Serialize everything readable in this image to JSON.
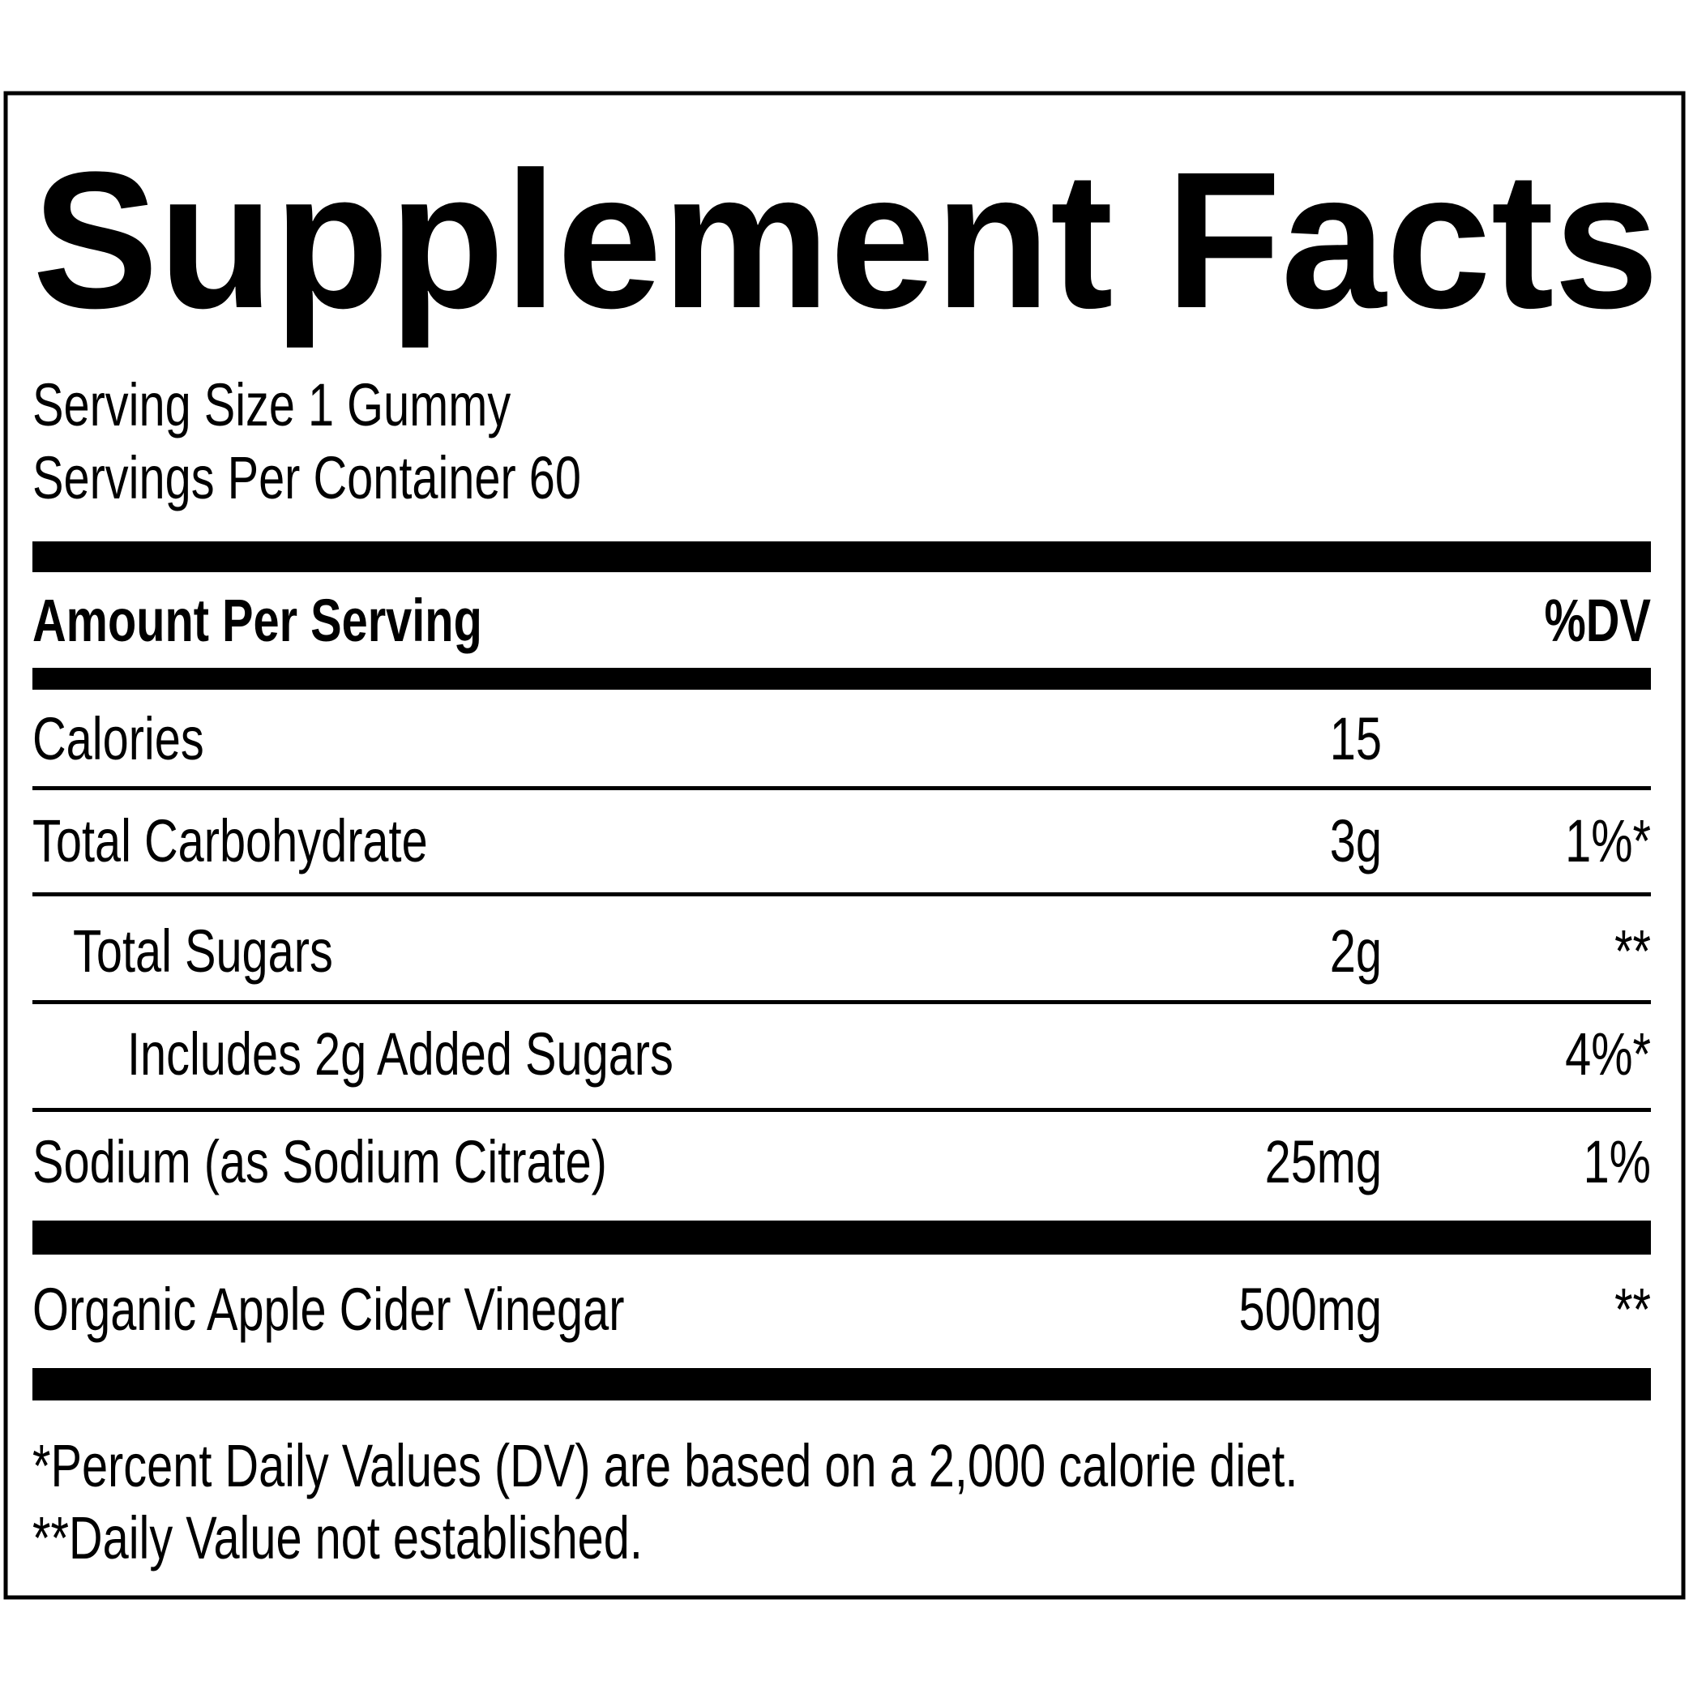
{
  "header": {
    "title": "Supplement Facts",
    "serving_size": "Serving Size 1 Gummy",
    "servings_per_container": "Servings Per Container 60"
  },
  "table": {
    "header": {
      "label": "Amount Per Serving",
      "dv": "%DV"
    },
    "rows": [
      {
        "name": "Calories",
        "amount": "15"
      },
      {
        "name": "Total Carbohydrate",
        "amount": "3g",
        "dv": "1%*"
      },
      {
        "name": "Total Sugars",
        "amount": "2g",
        "dv": "**"
      },
      {
        "name": "Includes 2g Added Sugars",
        "dv": "4%*"
      },
      {
        "name": "Sodium (as Sodium Citrate)",
        "amount": "25mg",
        "dv": "1%"
      },
      {
        "name": "Organic Apple Cider Vinegar",
        "amount": "500mg",
        "dv": "**"
      }
    ]
  },
  "footnotes": [
    "*Percent Daily Values (DV) are based on a 2,000 calorie diet.",
    "**Daily Value not established."
  ]
}
